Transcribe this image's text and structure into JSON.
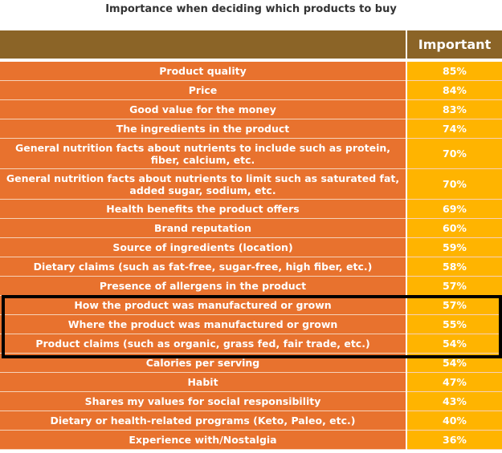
{
  "chart_data": {
    "type": "table",
    "title": "Importance when deciding which products to buy",
    "columns": [
      "",
      "Important"
    ],
    "rows": [
      {
        "label": "Product quality",
        "value": "85%"
      },
      {
        "label": "Price",
        "value": "84%"
      },
      {
        "label": "Good value for the money",
        "value": "83%"
      },
      {
        "label": "The ingredients in the product",
        "value": "74%"
      },
      {
        "label": "General nutrition facts about nutrients to include such as protein, fiber, calcium, etc.",
        "value": "70%"
      },
      {
        "label": "General nutrition facts about nutrients to limit such as saturated fat, added sugar, sodium, etc.",
        "value": "70%"
      },
      {
        "label": "Health benefits the product offers",
        "value": "69%"
      },
      {
        "label": "Brand reputation",
        "value": "60%"
      },
      {
        "label": "Source of ingredients (location)",
        "value": "59%"
      },
      {
        "label": "Dietary claims (such as fat-free, sugar-free, high fiber, etc.)",
        "value": "58%"
      },
      {
        "label": "Presence of allergens in the product",
        "value": "57%"
      },
      {
        "label": "How the product was manufactured or grown",
        "value": "57%",
        "highlighted": true
      },
      {
        "label": "Where the product was manufactured or grown",
        "value": "55%",
        "highlighted": true
      },
      {
        "label": "Product claims (such as organic, grass fed, fair trade, etc.)",
        "value": "54%",
        "highlighted": true
      },
      {
        "label": "Calories per serving",
        "value": "54%"
      },
      {
        "label": "Habit",
        "value": "47%"
      },
      {
        "label": "Shares my values for social responsibility",
        "value": "43%"
      },
      {
        "label": "Dietary or health-related programs (Keto, Paleo, etc.)",
        "value": "40%"
      },
      {
        "label": "Experience with/Nostalgia",
        "value": "36%"
      }
    ],
    "colors": {
      "header": "#8B6427",
      "label_cell": "#E8722E",
      "value_cell": "#FFB400",
      "highlight_border": "#000000"
    }
  }
}
